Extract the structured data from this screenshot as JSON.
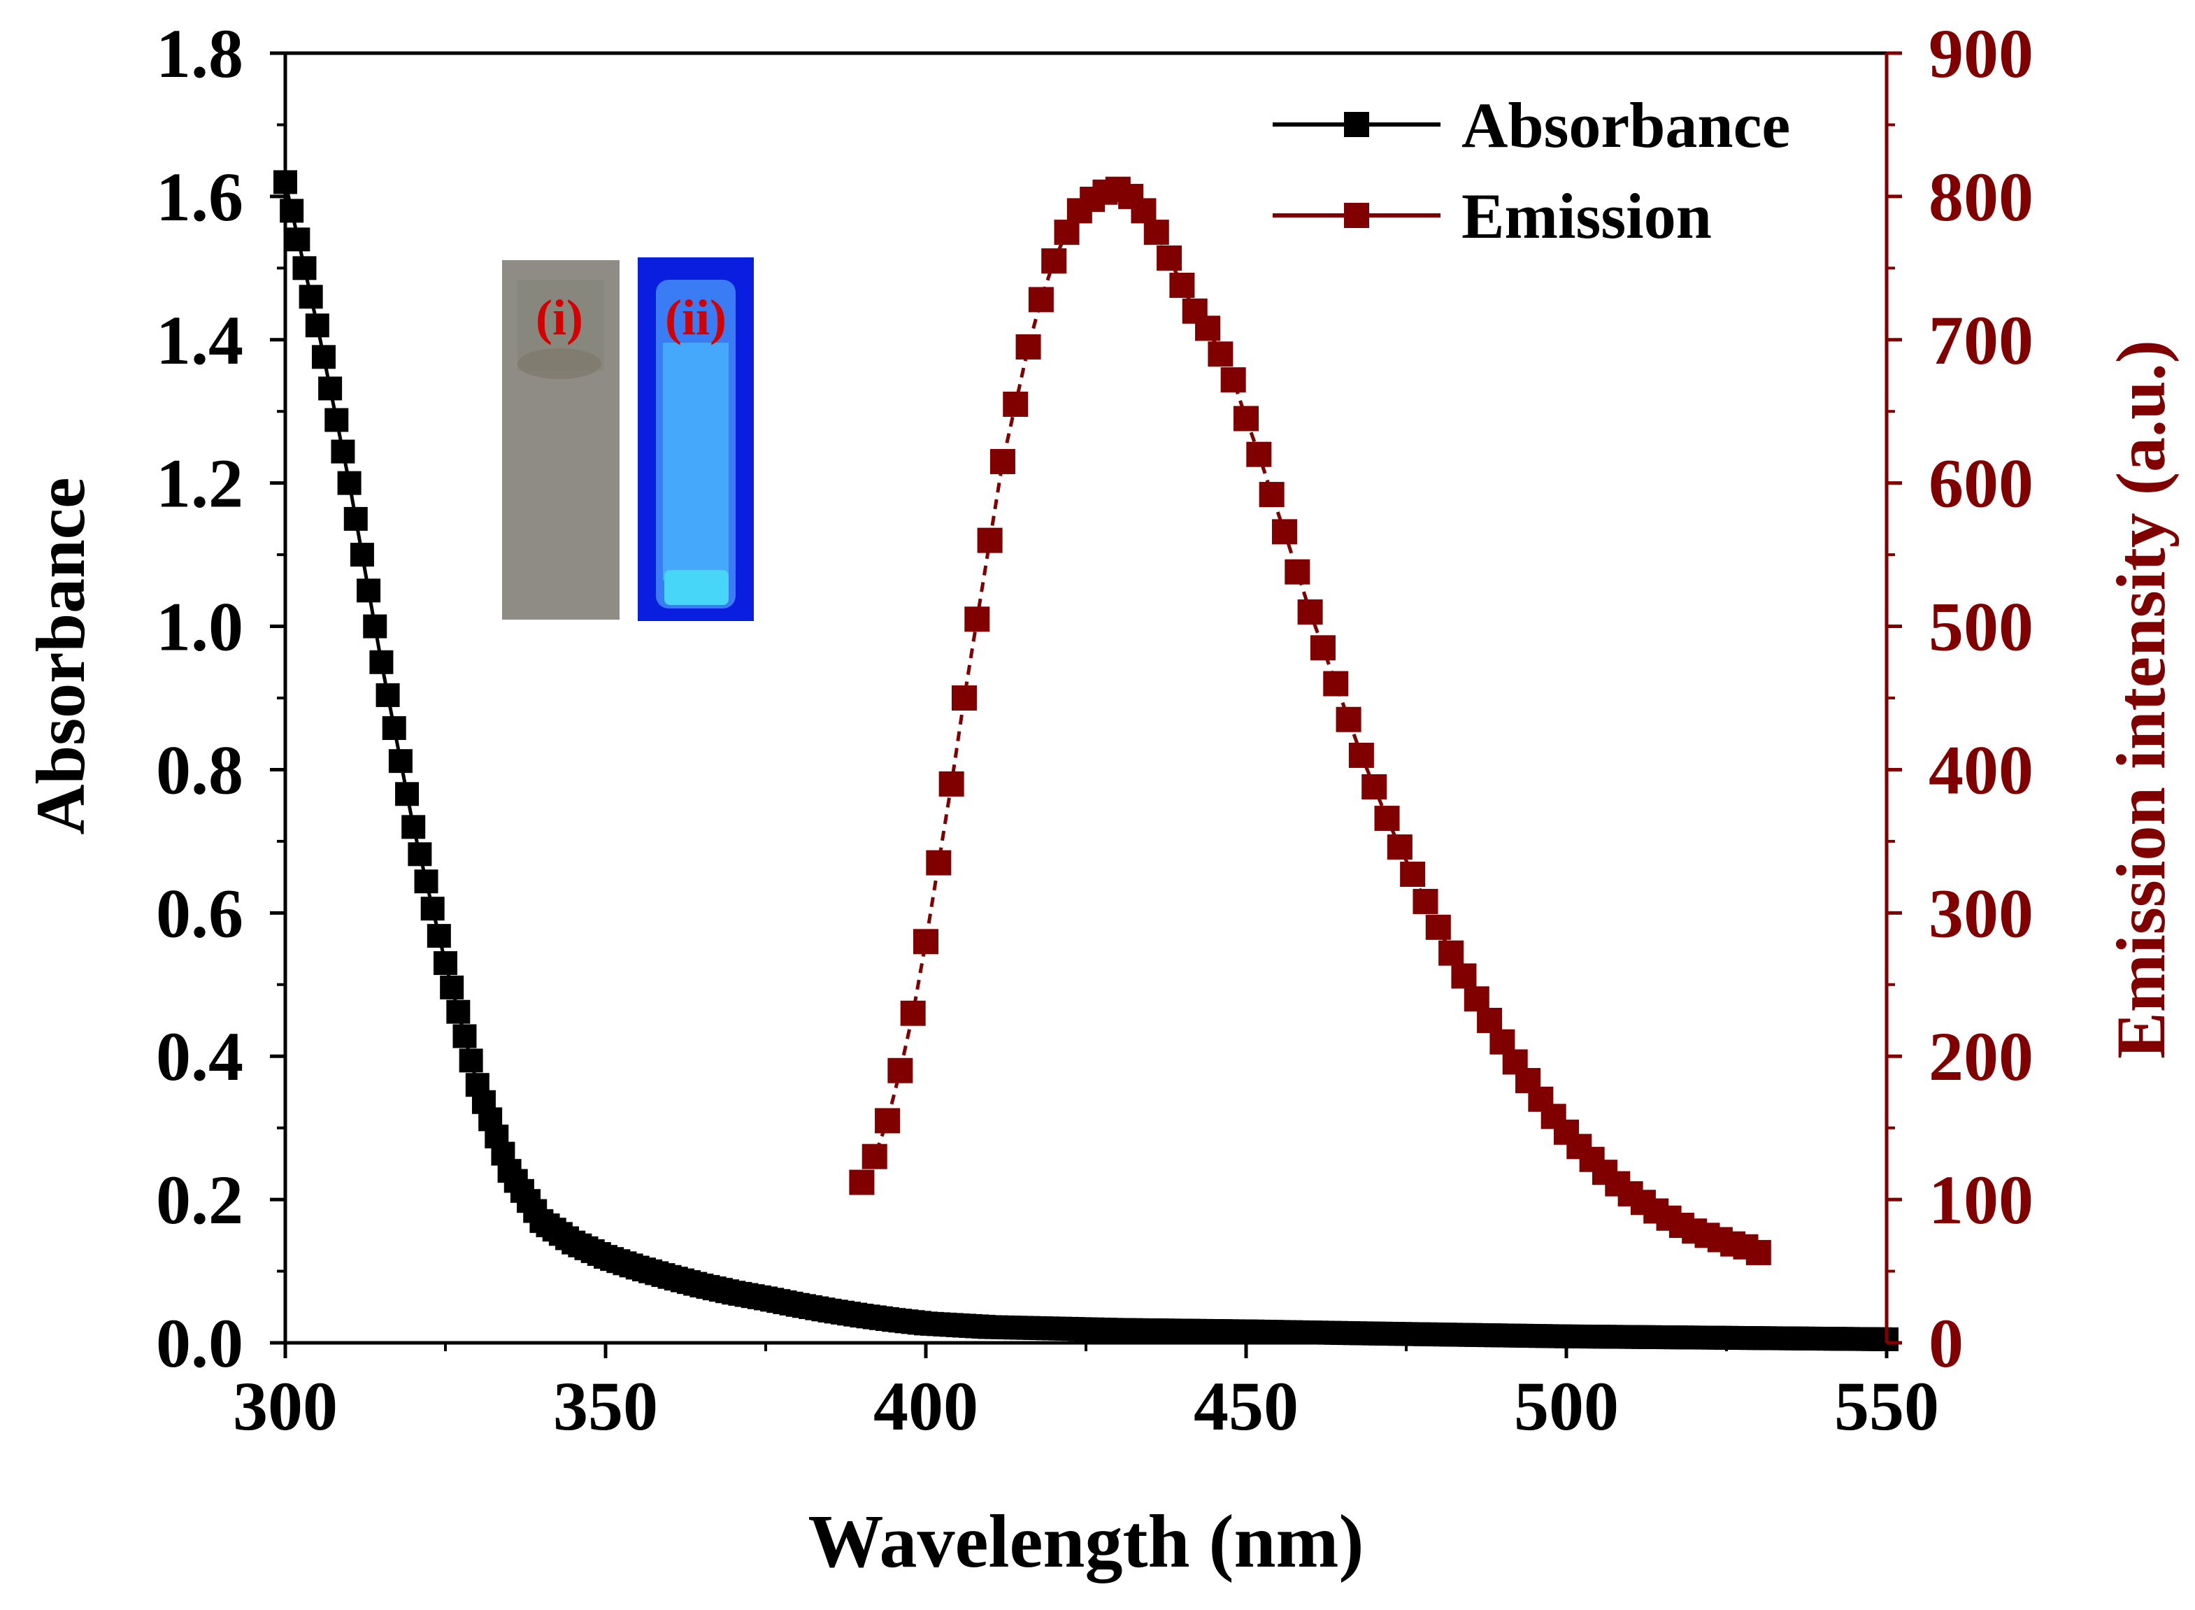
{
  "chart_data": {
    "type": "line",
    "title": "",
    "xlabel": "Wavelength (nm)",
    "ylabel_left": "Absorbance",
    "ylabel_right": "Emission intensity (a.u.)",
    "xlim": [
      300,
      550
    ],
    "ylim_left": [
      0,
      1.8
    ],
    "ylim_right": [
      0,
      900
    ],
    "x_ticks": [
      300,
      350,
      400,
      450,
      500,
      550
    ],
    "y_left_ticks": [
      "0.0",
      "0.2",
      "0.4",
      "0.6",
      "0.8",
      "1.0",
      "1.2",
      "1.4",
      "1.6",
      "1.8"
    ],
    "y_right_ticks": [
      "0",
      "100",
      "200",
      "300",
      "400",
      "500",
      "600",
      "700",
      "800",
      "900"
    ],
    "grid": false,
    "legend_position": "top-right",
    "colors": {
      "absorbance": "#000000",
      "emission": "#800000",
      "inset_label": "#d40000"
    },
    "series": [
      {
        "name": "Absorbance",
        "axis": "left",
        "marker": "square",
        "x": [
          300,
          305,
          310,
          315,
          320,
          325,
          330,
          335,
          340,
          345,
          350,
          355,
          360,
          365,
          370,
          375,
          380,
          385,
          390,
          395,
          400,
          410,
          420,
          430,
          450,
          470,
          500,
          525,
          550
        ],
        "values": [
          1.62,
          1.42,
          1.2,
          0.95,
          0.72,
          0.53,
          0.36,
          0.24,
          0.17,
          0.14,
          0.12,
          0.105,
          0.092,
          0.08,
          0.07,
          0.062,
          0.053,
          0.045,
          0.038,
          0.032,
          0.027,
          0.022,
          0.02,
          0.018,
          0.016,
          0.013,
          0.009,
          0.007,
          0.005
        ]
      },
      {
        "name": "Emission",
        "axis": "right",
        "marker": "square",
        "x": [
          390,
          392,
          394,
          396,
          398,
          400,
          402,
          404,
          406,
          408,
          410,
          412,
          414,
          416,
          418,
          420,
          422,
          424,
          426,
          428,
          430,
          432,
          434,
          436,
          438,
          440,
          442,
          444,
          446,
          448,
          450,
          452,
          454,
          456,
          458,
          460,
          462,
          464,
          466,
          468,
          470,
          472,
          474,
          476,
          478,
          480,
          482,
          484,
          486,
          488,
          490,
          492,
          494,
          496,
          498,
          500,
          502,
          504,
          506,
          508,
          510,
          512,
          514,
          516,
          518,
          520,
          522,
          524,
          526,
          528,
          530
        ],
        "values": [
          112,
          130,
          155,
          190,
          230,
          280,
          335,
          390,
          450,
          505,
          560,
          615,
          655,
          695,
          728,
          755,
          775,
          790,
          798,
          803,
          805,
          800,
          790,
          775,
          757,
          738,
          720,
          708,
          690,
          672,
          645,
          620,
          592,
          566,
          538,
          510,
          485,
          460,
          435,
          410,
          388,
          366,
          346,
          327,
          308,
          290,
          272,
          256,
          240,
          225,
          210,
          196,
          183,
          170,
          158,
          147,
          137,
          128,
          119,
          111,
          104,
          98,
          92,
          87,
          82,
          78,
          75,
          72,
          69,
          67,
          63
        ]
      }
    ],
    "inset": {
      "labels": [
        "(i)",
        "(ii)"
      ]
    }
  }
}
